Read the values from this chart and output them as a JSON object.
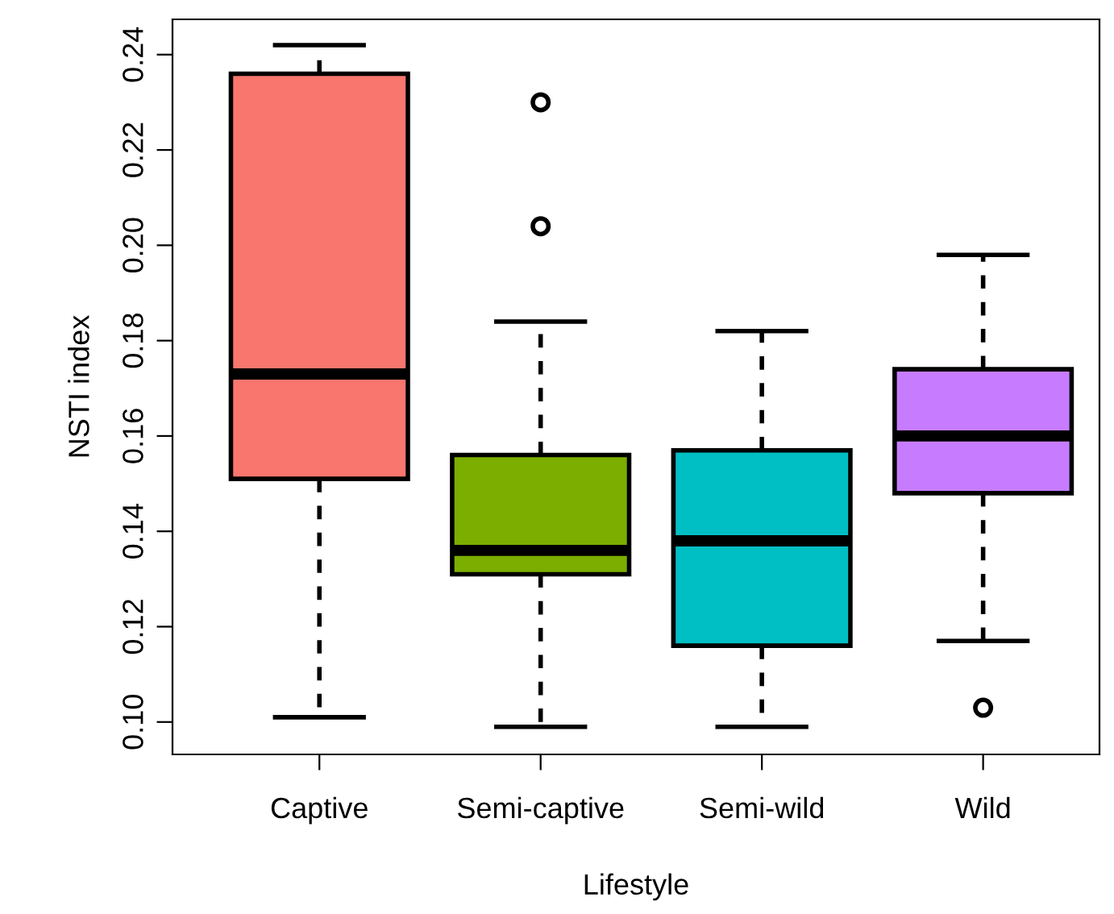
{
  "chart_data": {
    "type": "box",
    "xlabel": "Lifestyle",
    "ylabel": "NSTI index",
    "categories": [
      "Captive",
      "Semi-captive",
      "Semi-wild",
      "Wild"
    ],
    "colors": [
      "#f8766d",
      "#7cae00",
      "#00bfc4",
      "#c77cff"
    ],
    "boxes": [
      {
        "low": 0.101,
        "q1": 0.151,
        "median": 0.173,
        "q3": 0.236,
        "high": 0.242
      },
      {
        "low": 0.099,
        "q1": 0.131,
        "median": 0.136,
        "q3": 0.156,
        "high": 0.184,
        "outliers": [
          0.204,
          0.23
        ]
      },
      {
        "low": 0.099,
        "q1": 0.116,
        "median": 0.138,
        "q3": 0.157,
        "high": 0.182
      },
      {
        "low": 0.117,
        "q1": 0.148,
        "median": 0.16,
        "q3": 0.174,
        "high": 0.198,
        "outliers": [
          0.103
        ]
      }
    ],
    "ylim": [
      0.0932,
      0.2474
    ],
    "yticks": [
      {
        "value": 0.1,
        "label": "0.10"
      },
      {
        "value": 0.12,
        "label": "0.12"
      },
      {
        "value": 0.14,
        "label": "0.14"
      },
      {
        "value": 0.16,
        "label": "0.16"
      },
      {
        "value": 0.18,
        "label": "0.18"
      },
      {
        "value": 0.2,
        "label": "0.20"
      },
      {
        "value": 0.22,
        "label": "0.22"
      },
      {
        "value": 0.24,
        "label": "0.24"
      }
    ],
    "grid": false,
    "legend": false
  }
}
